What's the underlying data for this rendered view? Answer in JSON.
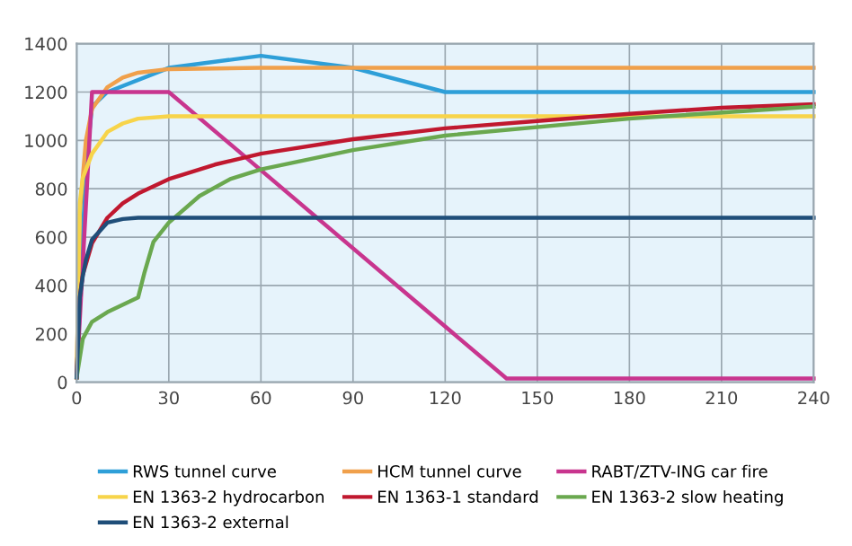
{
  "chart_data": {
    "type": "line",
    "xlim": [
      0,
      240
    ],
    "xticks": [
      0,
      30,
      60,
      90,
      120,
      150,
      180,
      210,
      240
    ],
    "ylim": [
      0,
      1400
    ],
    "yticks": [
      0,
      200,
      400,
      600,
      800,
      1000,
      1200,
      1400
    ],
    "grid": true,
    "legend": "bottom",
    "series": [
      {
        "name": "RWS tunnel curve",
        "color": "#2e9fd8",
        "x": [
          0,
          3,
          5,
          10,
          30,
          60,
          90,
          120,
          180,
          240
        ],
        "values": [
          20,
          890,
          1140,
          1200,
          1300,
          1350,
          1300,
          1200,
          1200,
          1200
        ]
      },
      {
        "name": "HCM tunnel curve",
        "color": "#f0a04b",
        "x": [
          0,
          1,
          3,
          5,
          10,
          15,
          20,
          30,
          60,
          240
        ],
        "values": [
          20,
          700,
          1000,
          1130,
          1220,
          1260,
          1280,
          1295,
          1300,
          1300
        ]
      },
      {
        "name": "RABT/ZTV-ING car fire",
        "color": "#c8358e",
        "x": [
          0,
          5,
          30,
          140,
          240
        ],
        "values": [
          20,
          1200,
          1200,
          15,
          15
        ]
      },
      {
        "name": "EN 1363-2 hydrocarbon",
        "color": "#f7d44a",
        "x": [
          0,
          1,
          2,
          5,
          10,
          15,
          20,
          30,
          240
        ],
        "values": [
          20,
          740,
          845,
          945,
          1035,
          1070,
          1090,
          1100,
          1100
        ]
      },
      {
        "name": "EN 1363-1 standard",
        "color": "#c0182f",
        "x": [
          0,
          1,
          2,
          5,
          10,
          15,
          20,
          30,
          45,
          60,
          90,
          120,
          150,
          180,
          210,
          240
        ],
        "values": [
          20,
          350,
          445,
          575,
          680,
          740,
          780,
          840,
          900,
          945,
          1005,
          1050,
          1080,
          1110,
          1135,
          1150
        ]
      },
      {
        "name": "EN 1363-2 slow heating",
        "color": "#6aa84f",
        "x": [
          0,
          2,
          5,
          10,
          20,
          22,
          25,
          30,
          40,
          50,
          60,
          90,
          120,
          180,
          240
        ],
        "values": [
          20,
          180,
          250,
          290,
          350,
          450,
          580,
          660,
          770,
          840,
          880,
          960,
          1020,
          1090,
          1140
        ]
      },
      {
        "name": "EN 1363-2 external",
        "color": "#1f4e79",
        "x": [
          0,
          1,
          2,
          3,
          5,
          10,
          15,
          20,
          240
        ],
        "values": [
          20,
          350,
          440,
          505,
          590,
          660,
          675,
          680,
          680
        ]
      }
    ]
  }
}
